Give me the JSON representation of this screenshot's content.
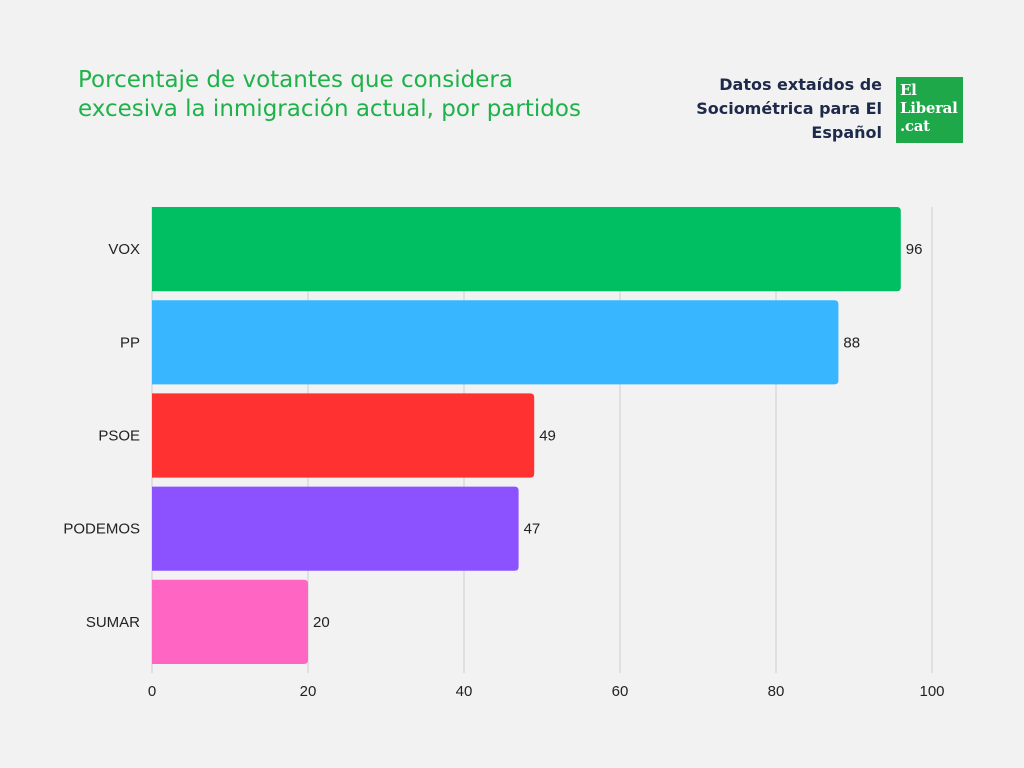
{
  "header": {
    "title": "Porcentaje de votantes que considera excesiva la inmigración actual, por partidos",
    "source": "Datos extaídos de Sociométrica para El Español",
    "logo_lines": [
      "El",
      "Liberal",
      ".cat"
    ]
  },
  "chart_data": {
    "type": "bar",
    "orientation": "horizontal",
    "title": "Porcentaje de votantes que considera excesiva la inmigración actual, por partidos",
    "categories": [
      "VOX",
      "PP",
      "PSOE",
      "PODEMOS",
      "SUMAR"
    ],
    "values": [
      96,
      88,
      49,
      47,
      20
    ],
    "colors": [
      "#00bf63",
      "#38b6ff",
      "#ff3131",
      "#8c52ff",
      "#ff66c4"
    ],
    "xlim": [
      0,
      100
    ],
    "xticks": [
      0,
      20,
      40,
      60,
      80,
      100
    ],
    "xlabel": "",
    "ylabel": "",
    "grid": "vertical",
    "data_labels": true,
    "legend": "none"
  }
}
